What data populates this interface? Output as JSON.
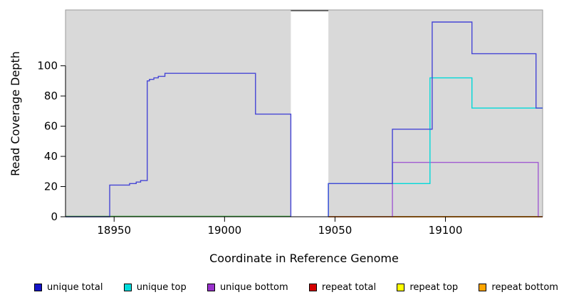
{
  "chart_data": {
    "type": "line",
    "title": "",
    "xlabel": "Coordinate in Reference Genome",
    "ylabel": "Read Coverage Depth",
    "xlim": [
      18928,
      19144
    ],
    "ylim": [
      0,
      137
    ],
    "xticks": [
      18950,
      19000,
      19050,
      19100
    ],
    "yticks": [
      0,
      20,
      40,
      60,
      80,
      100
    ],
    "grid": false,
    "legend_position": "bottom",
    "plot_background": "#d9d9d9",
    "page_background": "#ffffff",
    "plot_border_color": "#9a9a9a",
    "gap_region": {
      "x0": 19030,
      "x1": 19047,
      "color": "#ffffff",
      "clipped_line_color": "#4a4a4a"
    },
    "baseline_segments": [
      {
        "x0": 18928,
        "x1": 19030,
        "y": 0,
        "color": "#2fae2f"
      }
    ],
    "series": [
      {
        "name": "repeat top",
        "color": "#ffff00",
        "paths": [
          [
            [
              19047,
              0
            ],
            [
              19144,
              0
            ]
          ]
        ]
      },
      {
        "name": "repeat total",
        "color": "#d42222",
        "paths": [
          [
            [
              19047,
              0
            ],
            [
              19144,
              0
            ]
          ]
        ]
      },
      {
        "name": "repeat bottom",
        "color": "#ff9f00",
        "paths": [
          [
            [
              19076,
              0
            ],
            [
              19142,
              0
            ]
          ]
        ]
      },
      {
        "name": "unique bottom",
        "color": "#a05ad2",
        "paths": [
          [
            [
              19076,
              0
            ],
            [
              19076,
              36
            ],
            [
              19142,
              36
            ],
            [
              19142,
              0
            ]
          ]
        ]
      },
      {
        "name": "unique top",
        "color": "#00d9d9",
        "paths": [
          [
            [
              19047,
              0
            ],
            [
              19047,
              22
            ],
            [
              19093,
              22
            ],
            [
              19093,
              92
            ],
            [
              19112,
              92
            ],
            [
              19112,
              72
            ],
            [
              19144,
              72
            ]
          ]
        ]
      },
      {
        "name": "unique total",
        "color": "#4545d5",
        "paths": [
          [
            [
              18928,
              0
            ],
            [
              18948,
              0
            ],
            [
              18948,
              21
            ],
            [
              18957,
              21
            ],
            [
              18957,
              22
            ],
            [
              18960,
              22
            ],
            [
              18960,
              23
            ],
            [
              18962,
              23
            ],
            [
              18962,
              24
            ],
            [
              18965,
              24
            ],
            [
              18965,
              90
            ],
            [
              18966,
              90
            ],
            [
              18966,
              91
            ],
            [
              18968,
              91
            ],
            [
              18968,
              92
            ],
            [
              18970,
              92
            ],
            [
              18970,
              93
            ],
            [
              18973,
              93
            ],
            [
              18973,
              95
            ],
            [
              19014,
              95
            ],
            [
              19014,
              68
            ],
            [
              19030,
              68
            ],
            [
              19030,
              0
            ]
          ],
          [
            [
              19047,
              0
            ],
            [
              19047,
              22
            ],
            [
              19076,
              22
            ],
            [
              19076,
              58
            ],
            [
              19094,
              58
            ],
            [
              19094,
              129
            ],
            [
              19112,
              129
            ],
            [
              19112,
              108
            ],
            [
              19141,
              108
            ],
            [
              19141,
              72
            ],
            [
              19144,
              72
            ]
          ]
        ]
      }
    ],
    "legend": [
      {
        "label": "unique total",
        "color": "#1414c8"
      },
      {
        "label": "unique top",
        "color": "#00dcdc"
      },
      {
        "label": "unique bottom",
        "color": "#9932cc"
      },
      {
        "label": "repeat total",
        "color": "#d40000"
      },
      {
        "label": "repeat top",
        "color": "#ffff00"
      },
      {
        "label": "repeat bottom",
        "color": "#ffa500"
      }
    ]
  }
}
